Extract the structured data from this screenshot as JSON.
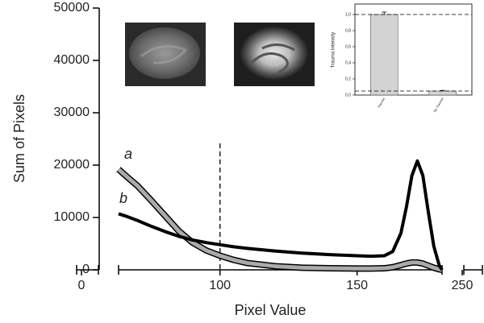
{
  "chart_data": [
    {
      "type": "line",
      "xlabel": "Pixel Value",
      "ylabel": "Sum of Pixels",
      "x": [
        63,
        66,
        70,
        75,
        80,
        85,
        90,
        95,
        100,
        105,
        110,
        120,
        130,
        140,
        150,
        155,
        160,
        163,
        166,
        168,
        170,
        172,
        174,
        176,
        178,
        180,
        181
      ],
      "series": [
        {
          "name": "a",
          "color": "#aaaaaa",
          "values": [
            19200,
            17800,
            16000,
            13200,
            10300,
            7400,
            5200,
            3700,
            2700,
            1900,
            1300,
            700,
            400,
            300,
            250,
            250,
            300,
            500,
            900,
            1200,
            1400,
            1400,
            1200,
            800,
            400,
            100,
            0
          ]
        },
        {
          "name": "b",
          "color": "#000000",
          "values": [
            10700,
            10200,
            9400,
            8300,
            7300,
            6400,
            5700,
            5200,
            4800,
            4400,
            4100,
            3600,
            3200,
            2900,
            2700,
            2600,
            2700,
            3500,
            7000,
            12000,
            18000,
            20800,
            18000,
            11000,
            4500,
            800,
            0
          ]
        }
      ],
      "xlim": [
        63,
        181
      ],
      "xticks": [
        0,
        100,
        150,
        250
      ],
      "ylim": [
        0,
        50000
      ],
      "yticks": [
        0,
        10000,
        20000,
        30000,
        40000,
        50000
      ],
      "vline": 100
    },
    {
      "type": "bar",
      "ylabel": "Trauma Intensity",
      "categories": [
        "Trauma",
        "No Trauma"
      ],
      "values": [
        1.0,
        0.05
      ],
      "errors": [
        0.03,
        0.008
      ],
      "color": "#d3d3d3",
      "ylim": [
        0,
        1.13
      ],
      "yticks": [
        {
          "value": 0,
          "label": "0,0"
        },
        {
          "value": 0.2,
          "label": "0,2"
        },
        {
          "value": 0.4,
          "label": "0,4"
        },
        {
          "value": 0.6,
          "label": "0,6"
        },
        {
          "value": 0.8,
          "label": "0,8"
        },
        {
          "value": 1.0,
          "label": "1,0"
        }
      ],
      "hlines": [
        1.0,
        0.05
      ]
    }
  ]
}
